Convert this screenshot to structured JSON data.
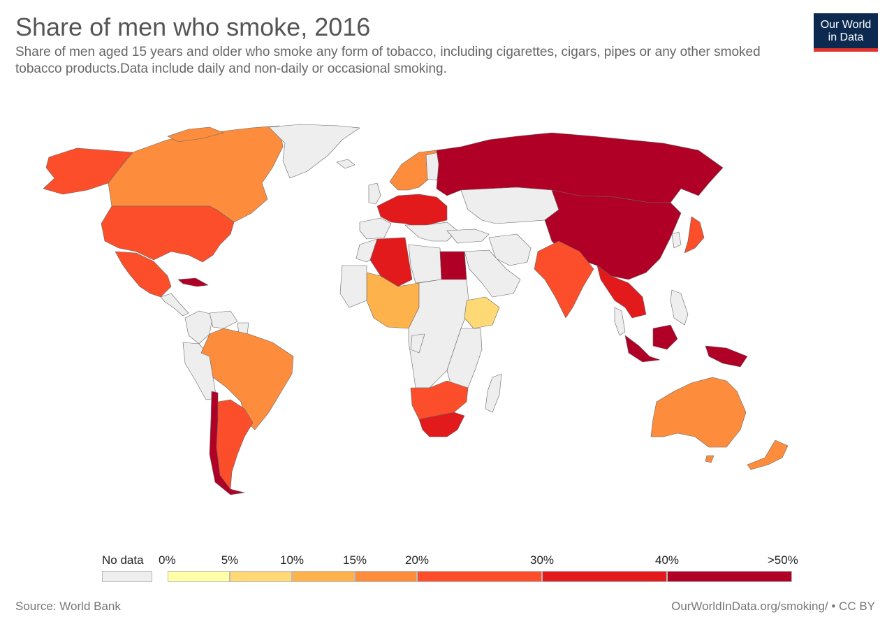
{
  "header": {
    "title": "Share of men who smoke, 2016",
    "subtitle": "Share of men aged 15 years and older who smoke any form of tobacco, including cigarettes, cigars, pipes or any other smoked tobacco products.Data include daily and non-daily or occasional smoking."
  },
  "logo": {
    "line1": "Our World",
    "line2": "in Data",
    "bg_color": "#0c2a50",
    "accent_color": "#e0332d"
  },
  "legend": {
    "no_data_label": "No data",
    "no_data_color": "#eeeeee",
    "bins": [
      {
        "label": "0%",
        "color": "#ffffa8"
      },
      {
        "label": "5%",
        "color": "#fed975"
      },
      {
        "label": "10%",
        "color": "#feb24c"
      },
      {
        "label": "15%",
        "color": "#fd8d3c"
      },
      {
        "label": "20%",
        "color": "#fc4e2a"
      },
      {
        "label": "30%",
        "color": "#e31a1c"
      },
      {
        "label": "40%",
        "color": "#b10026"
      }
    ],
    "end_label": ">50%"
  },
  "map_regions": [
    {
      "region": "Alaska",
      "color": "#fc4e2a"
    },
    {
      "region": "Canada",
      "color": "#fd8d3c"
    },
    {
      "region": "Greenland",
      "color": "#eeeeee"
    },
    {
      "region": "United States",
      "color": "#fc4e2a"
    },
    {
      "region": "Mexico",
      "color": "#fc4e2a"
    },
    {
      "region": "Cuba",
      "color": "#b10026"
    },
    {
      "region": "Brazil",
      "color": "#fd8d3c"
    },
    {
      "region": "Chile",
      "color": "#b10026"
    },
    {
      "region": "Argentina",
      "color": "#fc4e2a"
    },
    {
      "region": "Western Europe",
      "color": "#e31a1c"
    },
    {
      "region": "Scandinavia",
      "color": "#fd8d3c"
    },
    {
      "region": "Russia",
      "color": "#b10026"
    },
    {
      "region": "China",
      "color": "#b10026"
    },
    {
      "region": "India",
      "color": "#fc4e2a"
    },
    {
      "region": "Southeast Asia",
      "color": "#e31a1c"
    },
    {
      "region": "Indonesia",
      "color": "#b10026"
    },
    {
      "region": "Australia",
      "color": "#fd8d3c"
    },
    {
      "region": "New Zealand",
      "color": "#fd8d3c"
    },
    {
      "region": "Japan",
      "color": "#fc4e2a"
    },
    {
      "region": "Egypt",
      "color": "#b10026"
    },
    {
      "region": "Algeria",
      "color": "#e31a1c"
    },
    {
      "region": "Nigeria region",
      "color": "#feb24c"
    },
    {
      "region": "Ethiopia",
      "color": "#fed975"
    },
    {
      "region": "Southern Africa",
      "color": "#fc4e2a"
    },
    {
      "region": "South Africa",
      "color": "#e31a1c"
    },
    {
      "region": "Central Africa",
      "color": "#eeeeee"
    },
    {
      "region": "Madagascar",
      "color": "#eeeeee"
    }
  ],
  "footer": {
    "source": "Source: World Bank",
    "credit": "OurWorldInData.org/smoking/ • CC BY"
  }
}
